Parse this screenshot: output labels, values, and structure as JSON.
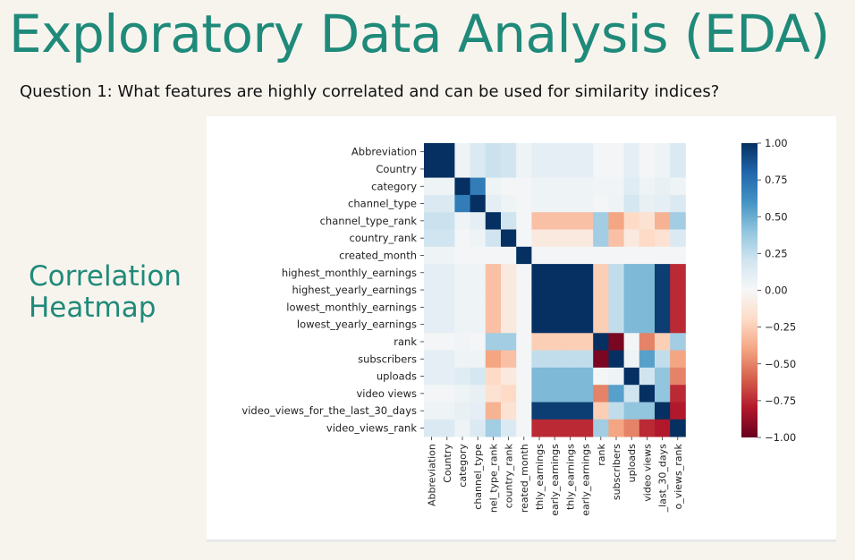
{
  "page": {
    "title": "Exploratory Data Analysis (EDA)",
    "question": "Question 1: What features are highly correlated and can be used for similarity indices?",
    "side_label_line1": "Correlation",
    "side_label_line2": "Heatmap"
  },
  "chart_data": {
    "type": "heatmap",
    "title": "",
    "row_labels": [
      "Abbreviation",
      "Country",
      "category",
      "channel_type",
      "channel_type_rank",
      "country_rank",
      "created_month",
      "highest_monthly_earnings",
      "highest_yearly_earnings",
      "lowest_monthly_earnings",
      "lowest_yearly_earnings",
      "rank",
      "subscribers",
      "uploads",
      "video views",
      "video_views_for_the_last_30_days",
      "video_views_rank"
    ],
    "col_labels": [
      "Abbreviation",
      "Country",
      "category",
      "channel_type",
      "nel_type_rank",
      "country_rank",
      "reated_month",
      "thly_earnings",
      "early_earnings",
      "thly_earnings",
      "early_earnings",
      "rank",
      "subscribers",
      "uploads",
      "video views",
      "_last_30_days",
      "o_views_rank"
    ],
    "matrix": [
      [
        1.0,
        1.0,
        0.05,
        0.15,
        0.22,
        0.2,
        0.05,
        0.1,
        0.1,
        0.1,
        0.1,
        0.02,
        0.02,
        0.1,
        0.02,
        0.05,
        0.15
      ],
      [
        1.0,
        1.0,
        0.05,
        0.15,
        0.22,
        0.2,
        0.05,
        0.1,
        0.1,
        0.1,
        0.1,
        0.02,
        0.02,
        0.1,
        0.02,
        0.05,
        0.15
      ],
      [
        0.05,
        0.05,
        1.0,
        0.7,
        0.05,
        0.02,
        0.02,
        0.05,
        0.05,
        0.05,
        0.05,
        0.03,
        0.03,
        0.12,
        0.05,
        0.08,
        0.05
      ],
      [
        0.15,
        0.15,
        0.7,
        1.0,
        0.1,
        0.05,
        0.02,
        0.05,
        0.05,
        0.05,
        0.05,
        0.02,
        0.05,
        0.18,
        0.08,
        0.1,
        0.15
      ],
      [
        0.22,
        0.22,
        0.05,
        0.1,
        1.0,
        0.2,
        0.02,
        -0.3,
        -0.3,
        -0.3,
        -0.3,
        0.35,
        -0.4,
        -0.2,
        -0.15,
        -0.35,
        0.35
      ],
      [
        0.2,
        0.2,
        0.02,
        0.05,
        0.2,
        1.0,
        0.02,
        -0.1,
        -0.1,
        -0.1,
        -0.1,
        0.35,
        -0.3,
        -0.1,
        -0.2,
        -0.15,
        0.15
      ],
      [
        0.05,
        0.05,
        0.02,
        0.02,
        0.02,
        0.02,
        1.0,
        0.02,
        0.02,
        0.02,
        0.02,
        0.02,
        0.02,
        0.02,
        0.02,
        0.02,
        0.02
      ],
      [
        0.1,
        0.1,
        0.05,
        0.05,
        -0.3,
        -0.1,
        0.02,
        1.0,
        1.0,
        1.0,
        1.0,
        -0.25,
        0.25,
        0.45,
        0.45,
        0.95,
        -0.75
      ],
      [
        0.1,
        0.1,
        0.05,
        0.05,
        -0.3,
        -0.1,
        0.02,
        1.0,
        1.0,
        1.0,
        1.0,
        -0.25,
        0.25,
        0.45,
        0.45,
        0.95,
        -0.75
      ],
      [
        0.1,
        0.1,
        0.05,
        0.05,
        -0.3,
        -0.1,
        0.02,
        1.0,
        1.0,
        1.0,
        1.0,
        -0.25,
        0.25,
        0.45,
        0.45,
        0.95,
        -0.75
      ],
      [
        0.1,
        0.1,
        0.05,
        0.05,
        -0.3,
        -0.1,
        0.02,
        1.0,
        1.0,
        1.0,
        1.0,
        -0.25,
        0.25,
        0.45,
        0.45,
        0.95,
        -0.75
      ],
      [
        0.02,
        0.02,
        0.03,
        0.02,
        0.35,
        0.35,
        0.02,
        -0.25,
        -0.25,
        -0.25,
        -0.25,
        1.0,
        -0.95,
        0.02,
        -0.5,
        -0.25,
        0.35
      ],
      [
        0.1,
        0.1,
        0.05,
        0.05,
        -0.4,
        -0.3,
        0.02,
        0.25,
        0.25,
        0.25,
        0.25,
        -0.95,
        1.0,
        0.05,
        0.55,
        0.25,
        -0.4
      ],
      [
        0.1,
        0.1,
        0.12,
        0.18,
        -0.2,
        -0.1,
        0.02,
        0.45,
        0.45,
        0.45,
        0.45,
        0.02,
        0.05,
        1.0,
        0.2,
        0.4,
        -0.5
      ],
      [
        0.02,
        0.02,
        0.05,
        0.08,
        -0.15,
        -0.2,
        0.02,
        0.45,
        0.45,
        0.45,
        0.45,
        -0.5,
        0.55,
        0.2,
        1.0,
        0.4,
        -0.75
      ],
      [
        0.05,
        0.05,
        0.08,
        0.1,
        -0.35,
        -0.15,
        0.02,
        0.95,
        0.95,
        0.95,
        0.95,
        -0.25,
        0.25,
        0.4,
        0.4,
        1.0,
        -0.8
      ],
      [
        0.15,
        0.15,
        0.05,
        0.15,
        0.35,
        0.15,
        0.02,
        -0.75,
        -0.75,
        -0.75,
        -0.75,
        0.35,
        -0.4,
        -0.5,
        -0.75,
        -0.8,
        1.0
      ]
    ],
    "colorbar": {
      "range": [
        -1.0,
        1.0
      ],
      "ticks": [
        1.0,
        0.75,
        0.5,
        0.25,
        0.0,
        -0.25,
        -0.5,
        -0.75,
        -1.0
      ],
      "tick_labels": [
        "1.00",
        "0.75",
        "0.50",
        "0.25",
        "0.00",
        "−0.25",
        "−0.50",
        "−0.75",
        "−1.00"
      ],
      "colormap": "RdBu",
      "stops": [
        "#67001f",
        "#b2182b",
        "#d6604d",
        "#f4a582",
        "#fddbc7",
        "#f7f7f7",
        "#d1e5f0",
        "#92c5de",
        "#4393c3",
        "#2166ac",
        "#053061"
      ]
    }
  }
}
